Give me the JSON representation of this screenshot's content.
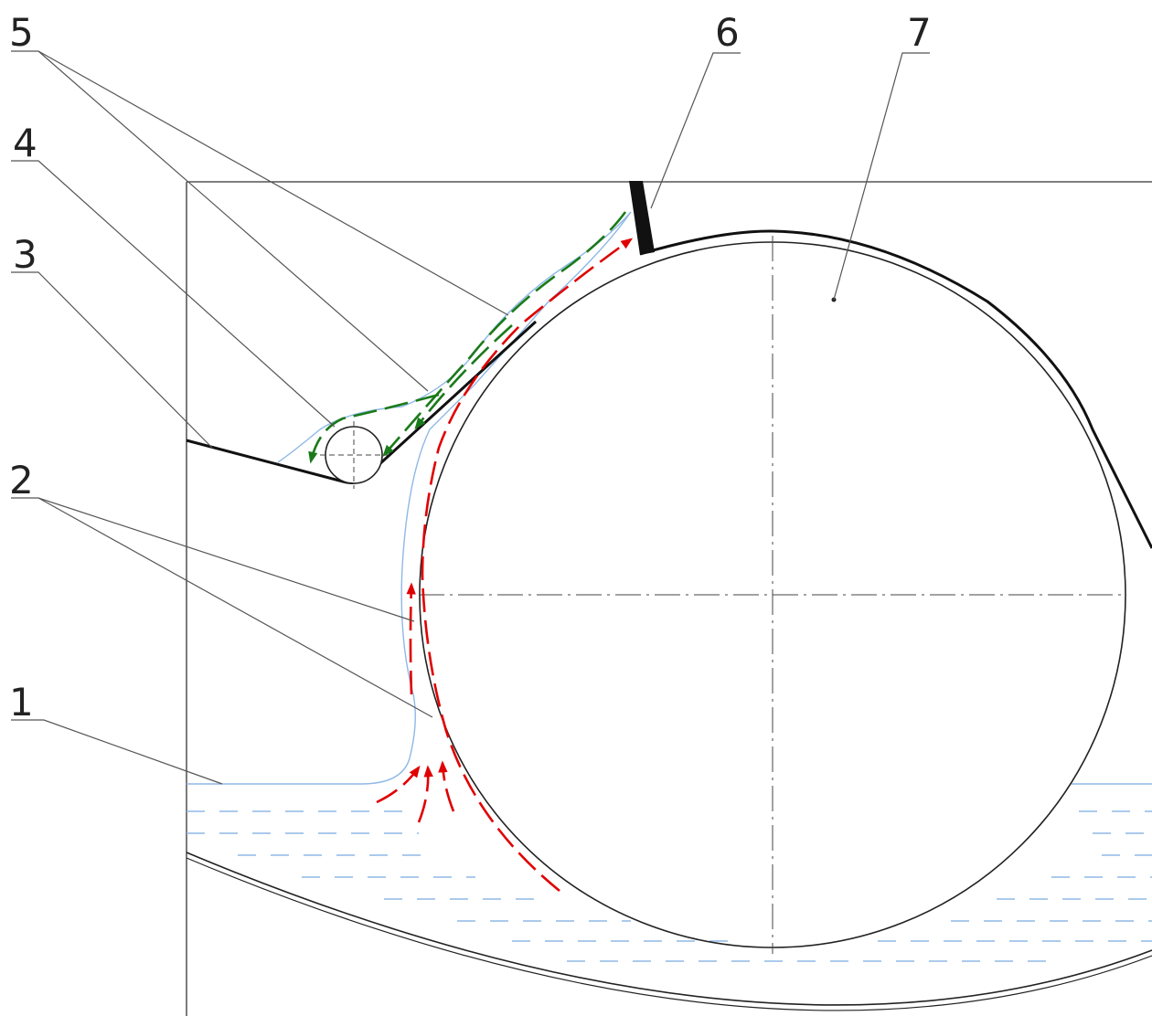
{
  "callouts": [
    {
      "id": "1",
      "text": "1"
    },
    {
      "id": "2",
      "text": "2"
    },
    {
      "id": "3",
      "text": "3"
    },
    {
      "id": "4",
      "text": "4"
    },
    {
      "id": "5",
      "text": "5"
    },
    {
      "id": "6",
      "text": "6"
    },
    {
      "id": "7",
      "text": "7"
    }
  ],
  "colors": {
    "outline": "#222222",
    "water": "#8fb8e6",
    "upward_flow": "#e00000",
    "return_flow": "#1a7a1a",
    "scraper": "#111111"
  }
}
